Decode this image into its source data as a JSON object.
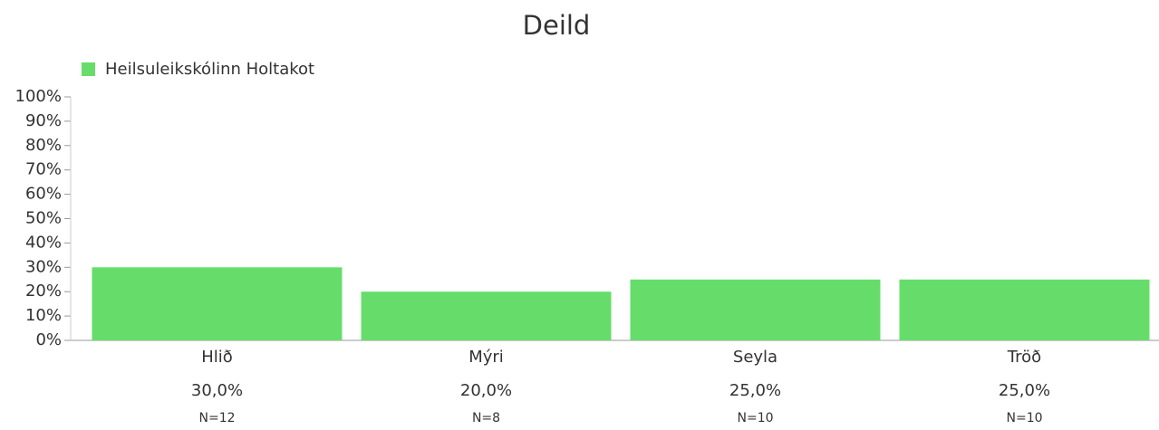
{
  "chart_data": {
    "type": "bar",
    "title": "Deild",
    "categories": [
      "Hlið",
      "Mýri",
      "Seyla",
      "Tröð"
    ],
    "series": [
      {
        "name": "Heilsuleikskólinn Holtakot",
        "color": "#66dd6a",
        "values": [
          30,
          20,
          25,
          25
        ]
      }
    ],
    "value_labels": [
      "30,0%",
      "20,0%",
      "25,0%",
      "25,0%"
    ],
    "n_labels": [
      "N=12",
      "N=8",
      "N=10",
      "N=10"
    ],
    "ylim": [
      0,
      100
    ],
    "yticks": [
      {
        "value": 0,
        "label": "0%"
      },
      {
        "value": 10,
        "label": "10%"
      },
      {
        "value": 20,
        "label": "20%"
      },
      {
        "value": 30,
        "label": "30%"
      },
      {
        "value": 40,
        "label": "40%"
      },
      {
        "value": 50,
        "label": "50%"
      },
      {
        "value": 60,
        "label": "60%"
      },
      {
        "value": 70,
        "label": "70%"
      },
      {
        "value": 80,
        "label": "80%"
      },
      {
        "value": 90,
        "label": "90%"
      },
      {
        "value": 100,
        "label": "100%"
      }
    ],
    "legend": "top-left"
  }
}
